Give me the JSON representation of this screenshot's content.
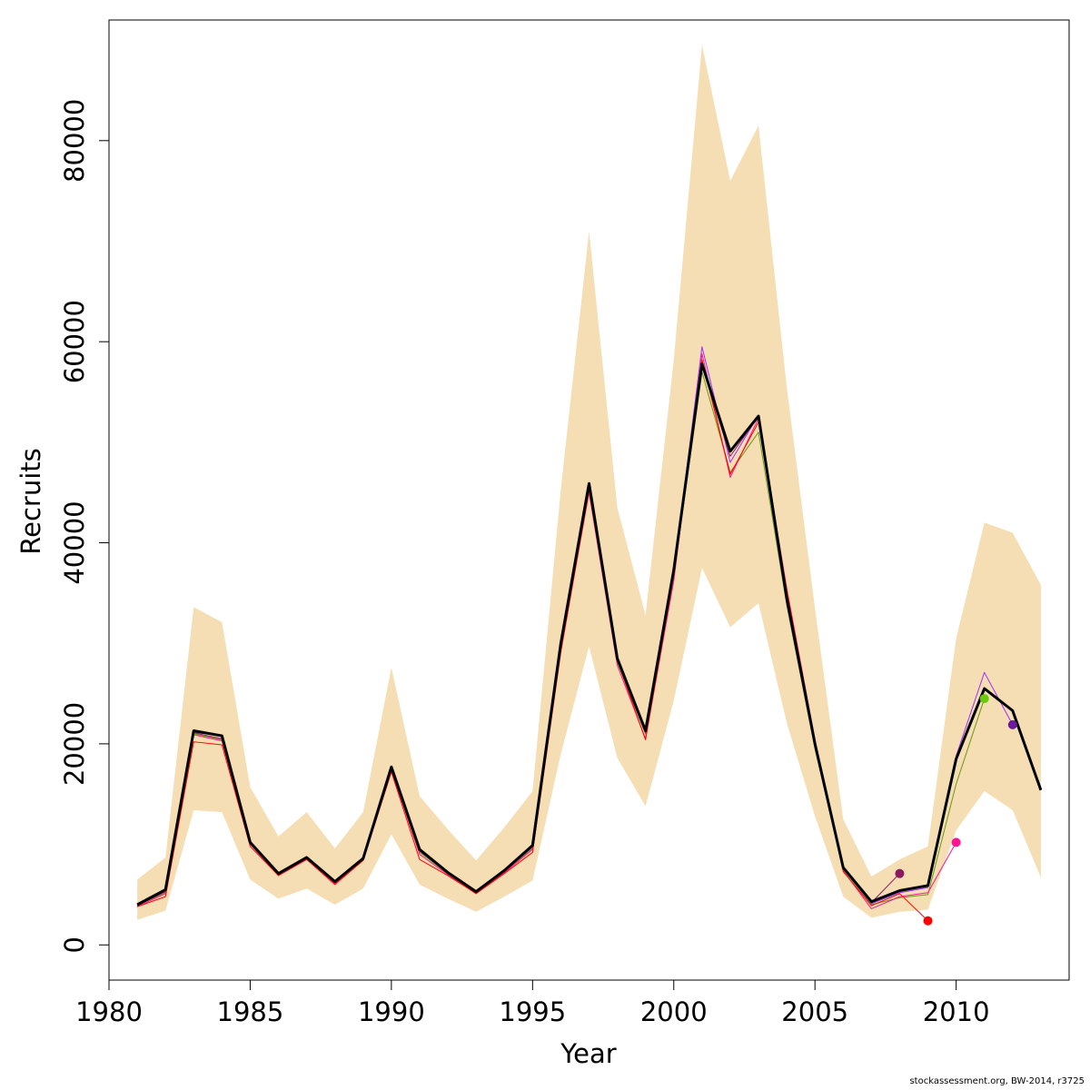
{
  "chart_data": {
    "type": "line",
    "xlabel": "Year",
    "ylabel": "Recruits",
    "xlim": [
      1980,
      2014
    ],
    "ylim": [
      -3500,
      92000
    ],
    "x_ticks": [
      1980,
      1985,
      1990,
      1995,
      2000,
      2005,
      2010
    ],
    "y_ticks": [
      0,
      20000,
      40000,
      60000,
      80000
    ],
    "grid": false,
    "legend": "none",
    "band_color": "#f5deb3",
    "confidence_band": {
      "x": [
        1981,
        1982,
        1983,
        1984,
        1985,
        1986,
        1987,
        1988,
        1989,
        1990,
        1991,
        1992,
        1993,
        1994,
        1995,
        1996,
        1997,
        1998,
        1999,
        2000,
        2001,
        2002,
        2003,
        2004,
        2005,
        2006,
        2007,
        2008,
        2009,
        2010,
        2011,
        2012,
        2013
      ],
      "lower": [
        2500,
        3400,
        13400,
        13200,
        6500,
        4600,
        5600,
        4000,
        5600,
        11000,
        6000,
        4600,
        3300,
        4800,
        6400,
        19000,
        29700,
        18600,
        13800,
        24300,
        37500,
        31600,
        34000,
        22100,
        12800,
        4800,
        2700,
        3300,
        3500,
        11400,
        15300,
        13400,
        6700
      ],
      "upper": [
        6500,
        8700,
        33600,
        32100,
        15700,
        10800,
        13200,
        9600,
        13200,
        27600,
        14800,
        11500,
        8400,
        11700,
        15300,
        45300,
        71000,
        43500,
        32800,
        58200,
        89500,
        76000,
        81500,
        55500,
        33500,
        12500,
        6800,
        8500,
        9800,
        30500,
        42000,
        41000,
        35800
      ]
    },
    "series": [
      {
        "color": "#000000",
        "width": 3,
        "x": [
          1981,
          1982,
          1983,
          1984,
          1985,
          1986,
          1987,
          1988,
          1989,
          1990,
          1991,
          1992,
          1993,
          1994,
          1995,
          1996,
          1997,
          1998,
          1999,
          2000,
          2001,
          2002,
          2003,
          2004,
          2005,
          2006,
          2007,
          2008,
          2009,
          2010,
          2011,
          2012,
          2013
        ],
        "values": [
          4000,
          5500,
          21300,
          20800,
          10200,
          7100,
          8700,
          6300,
          8600,
          17700,
          9500,
          7200,
          5300,
          7400,
          9900,
          30000,
          45900,
          28500,
          21300,
          37300,
          57800,
          49100,
          52600,
          34500,
          20000,
          7700,
          4300,
          5400,
          5900,
          18500,
          25500,
          23300,
          15400
        ]
      },
      {
        "color": "#9b30ff",
        "width": 1,
        "x": [
          1981,
          1982,
          1983,
          1984,
          1985,
          1986,
          1987,
          1988,
          1989,
          1990,
          1991,
          1992,
          1993,
          1994,
          1995,
          1996,
          1997,
          1998,
          1999,
          2000,
          2001,
          2002,
          2003,
          2004,
          2005,
          2006,
          2007,
          2008,
          2009,
          2010,
          2011,
          2012
        ],
        "values": [
          3900,
          5300,
          21100,
          20900,
          10100,
          7100,
          8600,
          6200,
          8500,
          17800,
          9300,
          7100,
          5200,
          7300,
          9700,
          29800,
          45500,
          28200,
          21000,
          37000,
          59500,
          48000,
          52700,
          34700,
          20300,
          7600,
          4100,
          5200,
          5700,
          18800,
          27100,
          21900
        ]
      },
      {
        "color": "#6a9a10",
        "width": 1,
        "x": [
          1981,
          1982,
          1983,
          1984,
          1985,
          1986,
          1987,
          1988,
          1989,
          1990,
          1991,
          1992,
          1993,
          1994,
          1995,
          1996,
          1997,
          1998,
          1999,
          2000,
          2001,
          2002,
          2003,
          2004,
          2005,
          2006,
          2007,
          2008,
          2009,
          2010,
          2011
        ],
        "values": [
          3900,
          5200,
          21000,
          20400,
          10000,
          7000,
          8600,
          6200,
          8500,
          17500,
          9200,
          7100,
          5200,
          7300,
          9600,
          29500,
          45200,
          28100,
          21000,
          36800,
          57000,
          47000,
          51000,
          33800,
          19500,
          7500,
          4000,
          4700,
          5000,
          16000,
          24500
        ]
      },
      {
        "color": "#ff1493",
        "width": 1,
        "x": [
          1981,
          1982,
          1983,
          1984,
          1985,
          1986,
          1987,
          1988,
          1989,
          1990,
          1991,
          1992,
          1993,
          1994,
          1995,
          1996,
          1997,
          1998,
          1999,
          2000,
          2001,
          2002,
          2003,
          2004,
          2005,
          2006,
          2007,
          2008,
          2009,
          2010
        ],
        "values": [
          3800,
          5100,
          20900,
          20300,
          10000,
          6900,
          8500,
          6100,
          8400,
          17400,
          9000,
          7000,
          5100,
          7200,
          9500,
          29300,
          45000,
          27800,
          20500,
          36200,
          58800,
          46500,
          52400,
          35500,
          20400,
          7400,
          3600,
          4800,
          5200,
          10200
        ]
      },
      {
        "color": "#ff0000",
        "width": 1,
        "x": [
          1981,
          1982,
          1983,
          1984,
          1985,
          1986,
          1987,
          1988,
          1989,
          1990,
          1991,
          1992,
          1993,
          1994,
          1995,
          1996,
          1997,
          1998,
          1999,
          2000,
          2001,
          2002,
          2003,
          2004,
          2005,
          2006,
          2007,
          2008,
          2009
        ],
        "values": [
          3800,
          4800,
          20200,
          19900,
          9800,
          6900,
          8500,
          6000,
          8400,
          17200,
          8500,
          6900,
          5100,
          7100,
          9200,
          29100,
          45200,
          28300,
          20400,
          36800,
          58200,
          46800,
          52000,
          35300,
          20300,
          7300,
          3900,
          5100,
          2400
        ]
      },
      {
        "color": "#8b1a5f",
        "width": 1,
        "x": [
          1981,
          1982,
          1983,
          1984,
          1985,
          1986,
          1987,
          1988,
          1989,
          1990,
          1991,
          1992,
          1993,
          1994,
          1995,
          1996,
          1997,
          1998,
          1999,
          2000,
          2001,
          2002,
          2003,
          2004,
          2005,
          2006,
          2007,
          2008
        ],
        "values": [
          3900,
          5300,
          21100,
          20500,
          10100,
          7000,
          8600,
          6200,
          8500,
          17600,
          9400,
          7100,
          5200,
          7300,
          9800,
          29700,
          45500,
          28300,
          21100,
          37000,
          57600,
          48600,
          52600,
          34000,
          19900,
          7700,
          4200,
          7100
        ]
      }
    ],
    "end_points": [
      {
        "x": 2008,
        "y": 7100,
        "color": "#8b1a5f"
      },
      {
        "x": 2009,
        "y": 2400,
        "color": "#ff0000"
      },
      {
        "x": 2010,
        "y": 10200,
        "color": "#ff1493"
      },
      {
        "x": 2011,
        "y": 24500,
        "color": "#6ac90a"
      },
      {
        "x": 2012,
        "y": 21900,
        "color": "#6a1b9a"
      }
    ]
  },
  "footer_text": "stockassessment.org, BW-2014, r3725"
}
